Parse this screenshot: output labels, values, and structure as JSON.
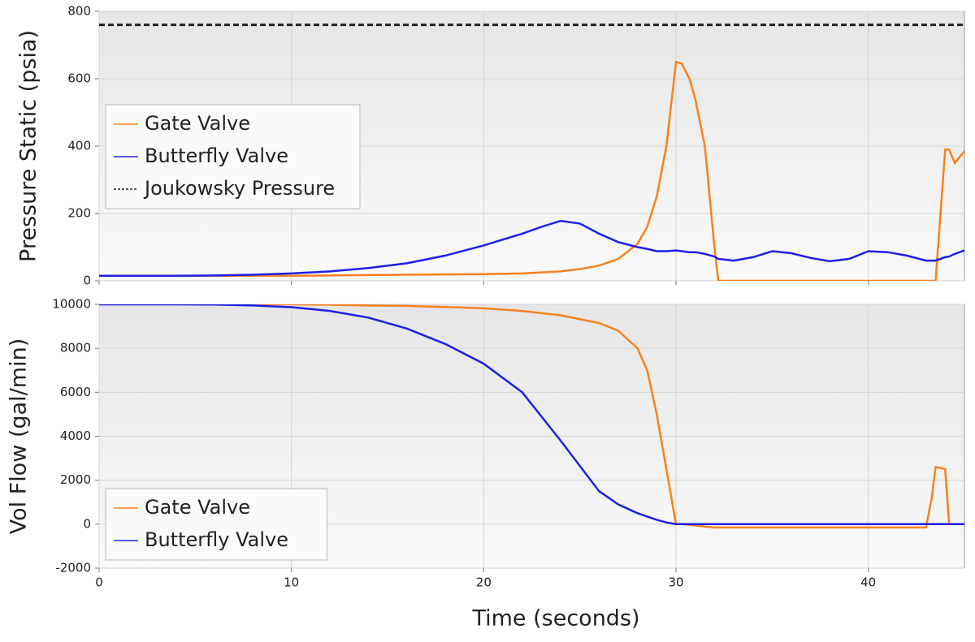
{
  "chart_data": [
    {
      "type": "line",
      "ylabel": "Pressure Static (psia)",
      "x": [
        0,
        2,
        4,
        6,
        8,
        10,
        12,
        14,
        16,
        18,
        20,
        22,
        23,
        24,
        25,
        26,
        27,
        28,
        28.5,
        29,
        29.5,
        30,
        30.3,
        30.7,
        31,
        31.5,
        32,
        32.2,
        33,
        34,
        35,
        36,
        37,
        38,
        39,
        40,
        41,
        42,
        43,
        43.5,
        44,
        44.2,
        44.5,
        45
      ],
      "xlim": [
        0,
        45
      ],
      "xticks": [
        0,
        10,
        20,
        30,
        40
      ],
      "ylim": [
        0,
        800
      ],
      "yticks": [
        0,
        200,
        400,
        600,
        800
      ],
      "grid": true,
      "legend": "center left",
      "series": [
        {
          "name": "Gate Valve",
          "color": "#f7821e",
          "dash": false,
          "values": [
            15,
            15,
            15,
            15,
            15,
            15,
            16,
            17,
            18,
            19,
            20,
            22,
            25,
            28,
            35,
            45,
            65,
            110,
            160,
            250,
            400,
            650,
            645,
            600,
            540,
            400,
            100,
            0,
            0,
            0,
            0,
            0,
            0,
            0,
            0,
            0,
            0,
            0,
            0,
            0,
            390,
            390,
            350,
            385
          ]
        },
        {
          "name": "Butterfly Valve",
          "color": "#1f1fe6",
          "dash": false,
          "values": [
            15,
            15,
            15,
            16,
            18,
            22,
            28,
            38,
            52,
            75,
            105,
            140,
            160,
            178,
            170,
            140,
            115,
            100,
            95,
            88,
            88,
            90,
            88,
            85,
            85,
            80,
            72,
            65,
            60,
            70,
            88,
            82,
            68,
            58,
            65,
            88,
            85,
            75,
            60,
            60,
            70,
            72,
            80,
            90
          ]
        },
        {
          "name": "Joukowsky Pressure",
          "color": "#222222",
          "dash": true,
          "values": [
            760,
            760,
            760,
            760,
            760,
            760,
            760,
            760,
            760,
            760,
            760,
            760,
            760,
            760,
            760,
            760,
            760,
            760,
            760,
            760,
            760,
            760,
            760,
            760,
            760,
            760,
            760,
            760,
            760,
            760,
            760,
            760,
            760,
            760,
            760,
            760,
            760,
            760,
            760,
            760,
            760,
            760,
            760,
            760
          ]
        }
      ]
    },
    {
      "type": "line",
      "ylabel": "Vol Flow (gal/min)",
      "xlabel": "Time (seconds)",
      "x": [
        0,
        2,
        4,
        6,
        8,
        10,
        12,
        14,
        16,
        18,
        20,
        22,
        24,
        26,
        27,
        28,
        28.5,
        29,
        29.5,
        30,
        30.3,
        32,
        34,
        36,
        38,
        40,
        42,
        43,
        43.3,
        43.5,
        43.8,
        44,
        44.2,
        45
      ],
      "xlim": [
        0,
        45
      ],
      "xticks": [
        0,
        10,
        20,
        30,
        40
      ],
      "ylim": [
        -2000,
        10000
      ],
      "yticks": [
        -2000,
        0,
        2000,
        4000,
        6000,
        8000,
        10000
      ],
      "grid": true,
      "legend": "lower left",
      "series": [
        {
          "name": "Gate Valve",
          "color": "#f7821e",
          "dash": false,
          "values": [
            10000,
            10000,
            10000,
            10000,
            10000,
            10000,
            9980,
            9950,
            9930,
            9880,
            9820,
            9700,
            9500,
            9150,
            8800,
            8000,
            7000,
            5000,
            2500,
            0,
            0,
            -150,
            -150,
            -150,
            -150,
            -150,
            -150,
            -150,
            1200,
            2600,
            2550,
            2500,
            0,
            0
          ]
        },
        {
          "name": "Butterfly Valve",
          "color": "#1f1fe6",
          "dash": false,
          "values": [
            10000,
            10000,
            10000,
            9990,
            9950,
            9870,
            9700,
            9400,
            8900,
            8200,
            7300,
            6000,
            3800,
            1500,
            900,
            500,
            350,
            200,
            80,
            0,
            0,
            0,
            0,
            0,
            0,
            0,
            0,
            0,
            0,
            0,
            0,
            0,
            0,
            0
          ]
        }
      ]
    }
  ]
}
